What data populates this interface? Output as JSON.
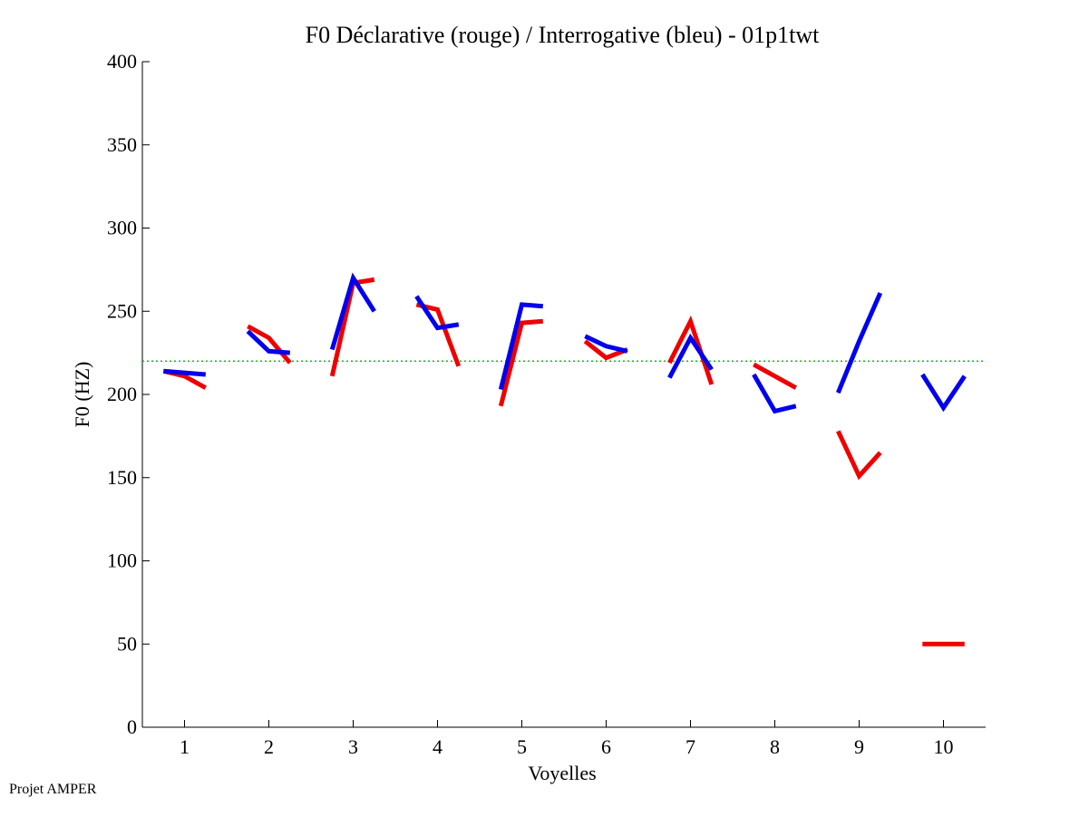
{
  "footer": "Projet AMPER",
  "chart_data": {
    "type": "line",
    "title": "F0 Déclarative (rouge) / Interrogative (bleu) - 01p1twt",
    "xlabel": "Voyelles",
    "ylabel": "F0 (HZ)",
    "xlim": [
      0.5,
      10.5
    ],
    "ylim": [
      0,
      400
    ],
    "xticks": [
      1,
      2,
      3,
      4,
      5,
      6,
      7,
      8,
      9,
      10
    ],
    "yticks": [
      0,
      50,
      100,
      150,
      200,
      250,
      300,
      350,
      400
    ],
    "reference_line": {
      "value": 220,
      "color": "#00cc00",
      "style": "dotted"
    },
    "series": [
      {
        "name": "Déclarative",
        "color": "#ee0000",
        "segments": [
          [
            [
              0.75,
              214
            ],
            [
              1.0,
              211
            ],
            [
              1.25,
              204
            ]
          ],
          [
            [
              1.75,
              241
            ],
            [
              2.0,
              234
            ],
            [
              2.25,
              219
            ]
          ],
          [
            [
              2.75,
              211
            ],
            [
              3.0,
              267
            ],
            [
              3.25,
              269
            ]
          ],
          [
            [
              3.75,
              254
            ],
            [
              4.0,
              251
            ],
            [
              4.25,
              217
            ]
          ],
          [
            [
              4.75,
              193
            ],
            [
              5.0,
              243
            ],
            [
              5.25,
              244
            ]
          ],
          [
            [
              5.75,
              232
            ],
            [
              6.0,
              222
            ],
            [
              6.25,
              227
            ]
          ],
          [
            [
              6.75,
              219
            ],
            [
              7.0,
              244
            ],
            [
              7.25,
              206
            ]
          ],
          [
            [
              7.75,
              218
            ],
            [
              8.0,
              211
            ],
            [
              8.25,
              204
            ]
          ],
          [
            [
              8.75,
              178
            ],
            [
              9.0,
              151
            ],
            [
              9.25,
              165
            ]
          ],
          [
            [
              9.75,
              50
            ],
            [
              10.0,
              50
            ],
            [
              10.25,
              50
            ]
          ]
        ]
      },
      {
        "name": "Interrogative",
        "color": "#0000ee",
        "segments": [
          [
            [
              0.75,
              214
            ],
            [
              1.0,
              213
            ],
            [
              1.25,
              212
            ]
          ],
          [
            [
              1.75,
              238
            ],
            [
              2.0,
              226
            ],
            [
              2.25,
              225
            ]
          ],
          [
            [
              2.75,
              227
            ],
            [
              3.0,
              270
            ],
            [
              3.25,
              250
            ]
          ],
          [
            [
              3.75,
              259
            ],
            [
              4.0,
              240
            ],
            [
              4.25,
              242
            ]
          ],
          [
            [
              4.75,
              203
            ],
            [
              5.0,
              254
            ],
            [
              5.25,
              253
            ]
          ],
          [
            [
              5.75,
              235
            ],
            [
              6.0,
              229
            ],
            [
              6.25,
              226
            ]
          ],
          [
            [
              6.75,
              210
            ],
            [
              7.0,
              234
            ],
            [
              7.25,
              215
            ]
          ],
          [
            [
              7.75,
              212
            ],
            [
              8.0,
              190
            ],
            [
              8.25,
              193
            ]
          ],
          [
            [
              8.75,
              201
            ],
            [
              9.0,
              232
            ],
            [
              9.25,
              261
            ]
          ],
          [
            [
              9.75,
              212
            ],
            [
              10.0,
              192
            ],
            [
              10.25,
              211
            ]
          ]
        ]
      }
    ]
  }
}
